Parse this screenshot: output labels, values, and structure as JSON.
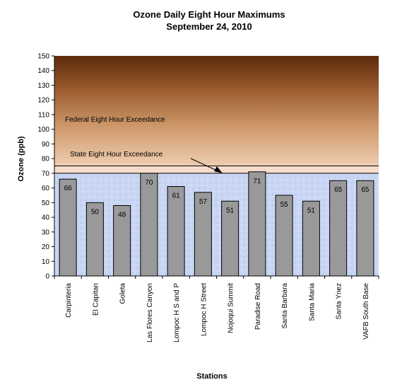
{
  "chart_data": {
    "type": "bar",
    "title": "Ozone Daily Eight Hour Maximums",
    "subtitle": "September 24, 2010",
    "xlabel": "Stations",
    "ylabel": "Ozone (ppb)",
    "ylim": [
      0,
      150
    ],
    "ytick_step": 10,
    "categories": [
      "Carpinteria",
      "El Capitan",
      "Goleta",
      "Las Flores Canyon",
      "Lompoc H S and P",
      "Lompoc H Street",
      "Nojoqui Summit",
      "Paradise Road",
      "Santa Barbara",
      "Santa Maria",
      "Santa Ynez",
      "VAFB South Base"
    ],
    "values": [
      66,
      50,
      48,
      70,
      61,
      57,
      51,
      71,
      55,
      51,
      65,
      65
    ],
    "bar_color": "#999999",
    "grid": false,
    "legend": "none",
    "reference_lines": [
      {
        "label": "Federal Eight Hour Exceedance",
        "value": 75
      },
      {
        "label": "State Eight Hour Exceedance",
        "value": 70
      }
    ]
  }
}
